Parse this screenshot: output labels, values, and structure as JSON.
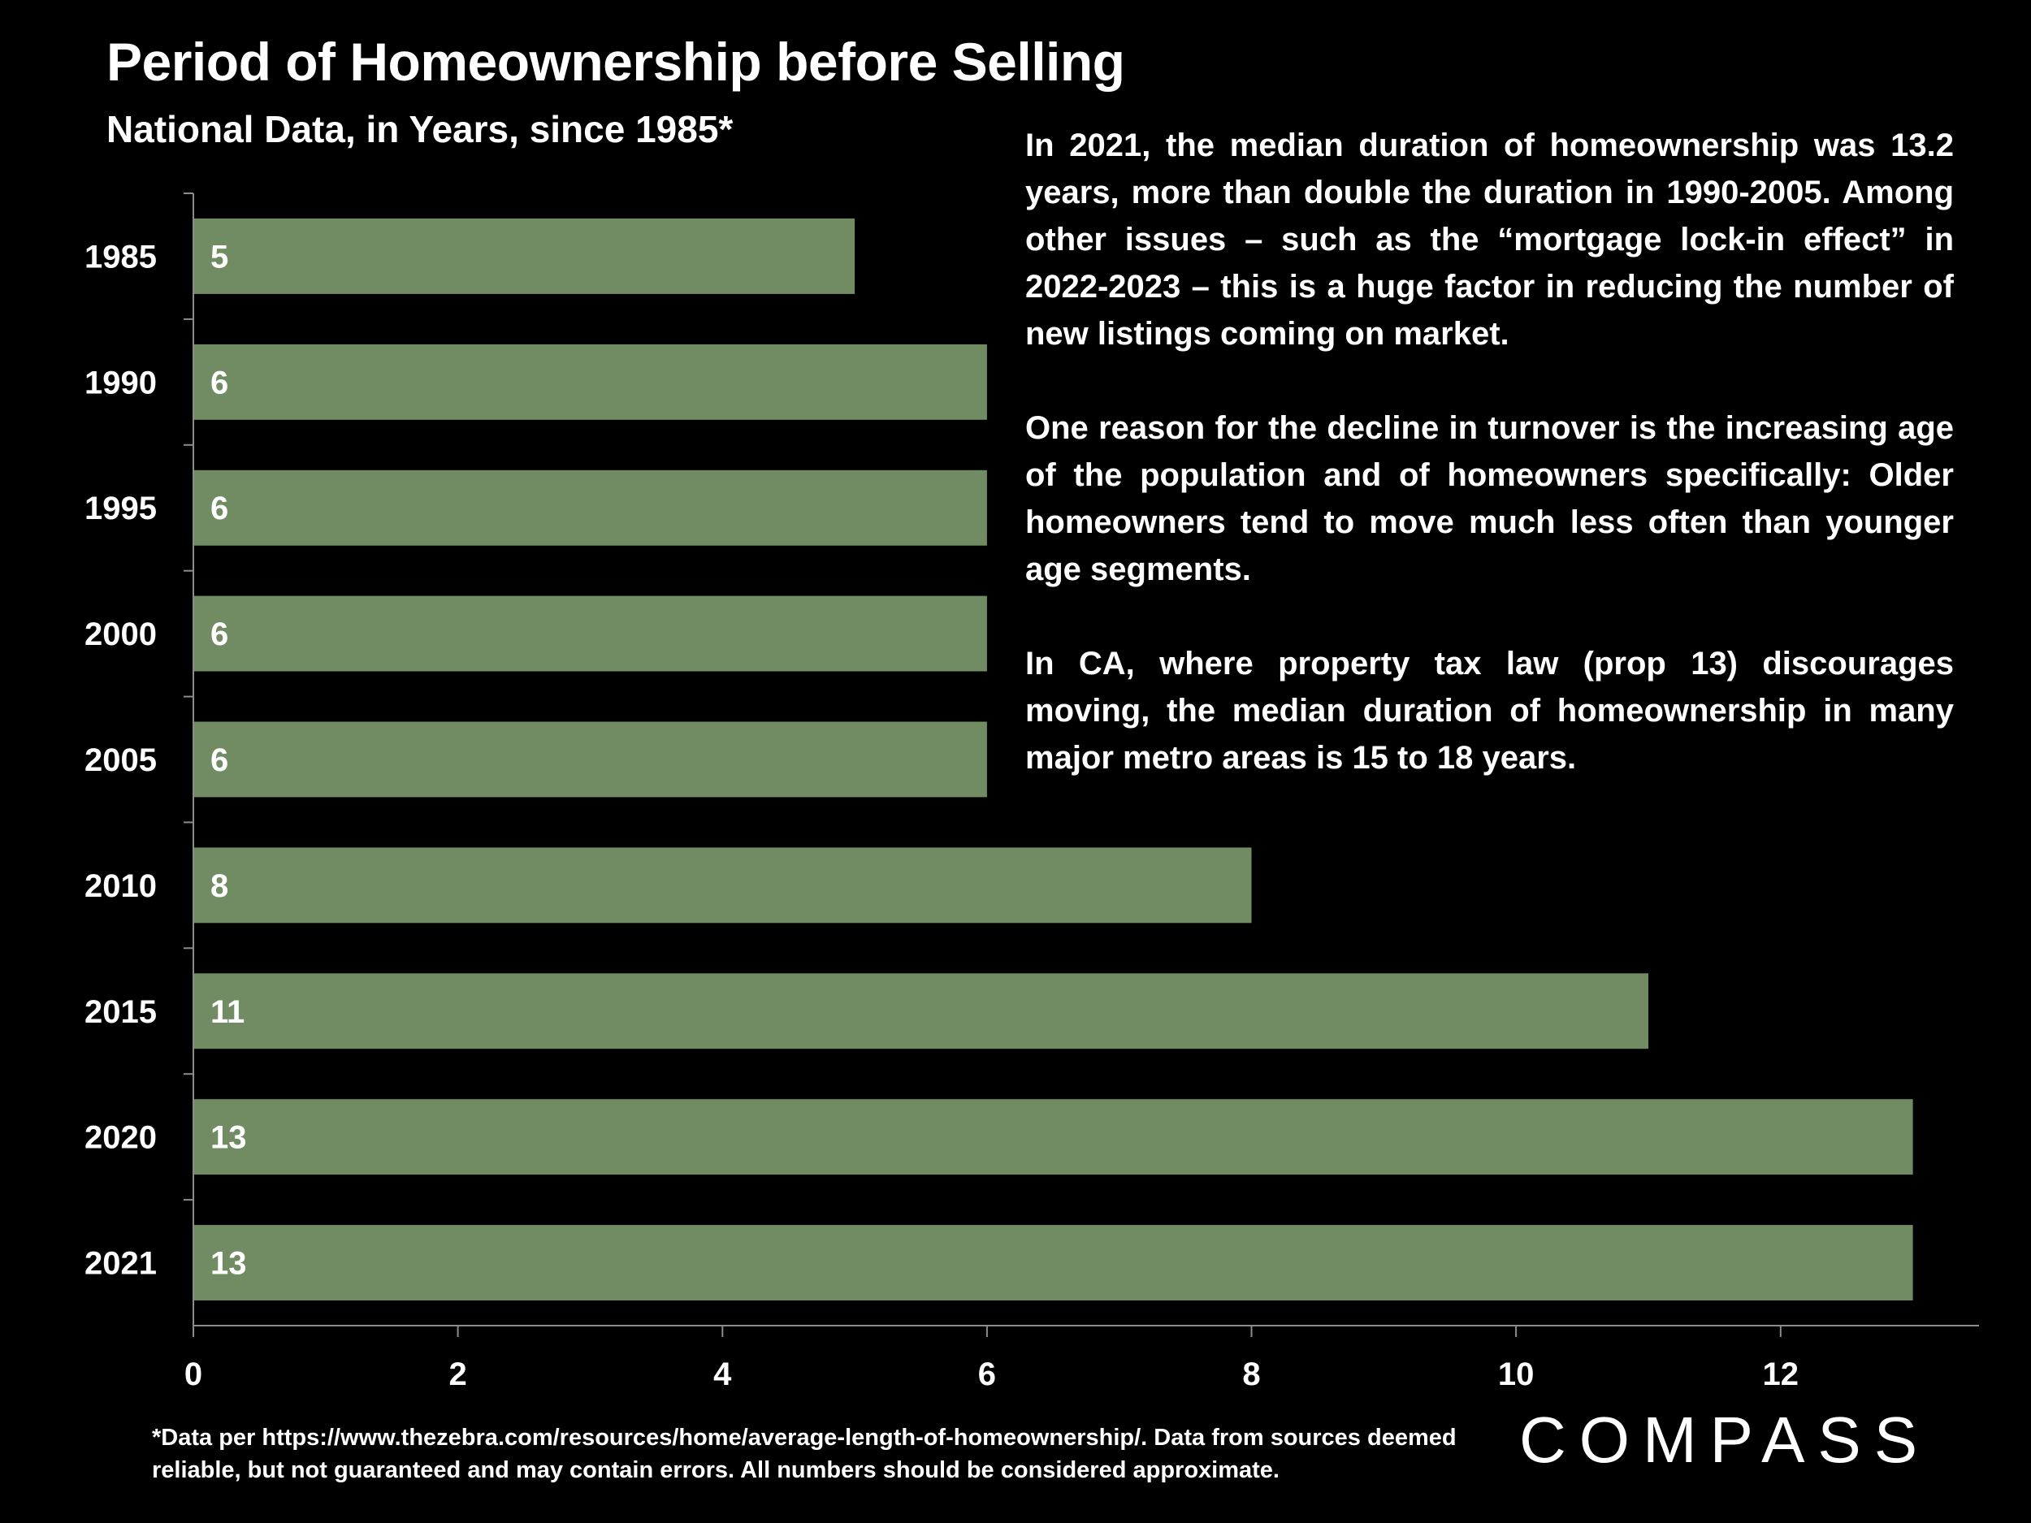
{
  "header": {
    "title": "Period of Homeownership before Selling",
    "subtitle": "National Data, in Years, since 1985*"
  },
  "notes": {
    "paragraphs": [
      "In 2021, the median duration of homeownership was 13.2 years, more than double the duration in 1990-2005. Among other issues – such as the “mortgage lock-in effect” in 2022-2023 – this is a huge factor in reducing the number of new listings coming on market.",
      "One reason for the decline in turnover is the increasing age of the population and of homeowners specifically: Older homeowners tend to move much less often than younger age segments.",
      "In CA, where property tax law (prop 13) discourages moving, the median duration of homeownership in many major metro areas is 15 to 18 years."
    ]
  },
  "footnote": {
    "text": "*Data per https://www.thezebra.com/resources/home/average-length-of-homeownership/. Data from sources deemed reliable, but not guaranteed and may contain errors. All numbers should be considered approximate."
  },
  "brand": {
    "logo_text": "COMPASS"
  },
  "colors": {
    "background": "#000000",
    "bar": "#718c63",
    "text": "#ffffff",
    "axis": "#8c8c8c"
  },
  "chart_data": {
    "type": "bar",
    "orientation": "horizontal",
    "categories": [
      "1985",
      "1990",
      "1995",
      "2000",
      "2005",
      "2010",
      "2015",
      "2020",
      "2021"
    ],
    "values": [
      5,
      6,
      6,
      6,
      6,
      8,
      11,
      13,
      13
    ],
    "data_labels": [
      "5",
      "6",
      "6",
      "6",
      "6",
      "8",
      "11",
      "13",
      "13"
    ],
    "title": "Period of Homeownership before Selling",
    "subtitle": "National Data, in Years, since 1985*",
    "xlim": [
      0,
      13.5
    ],
    "xticks": [
      0,
      2,
      4,
      6,
      8,
      10,
      12
    ],
    "grid": false,
    "legend": "none"
  }
}
